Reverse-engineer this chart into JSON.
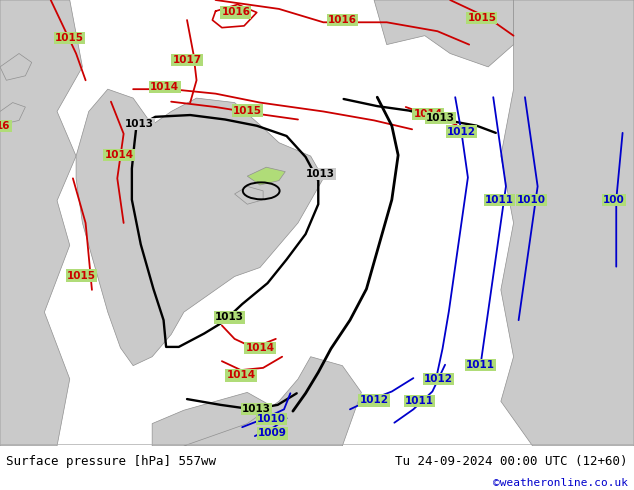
{
  "title_left": "Surface pressure [hPa] 557ww",
  "title_right": "Tu 24-09-2024 00:00 UTC (12+60)",
  "copyright": "©weatheronline.co.uk",
  "bg_color": "#b0dc78",
  "land_color": "#cacaca",
  "land_edge": "#909090",
  "footer_bg": "#ffffff",
  "footer_text_color": "#000000",
  "copyright_color": "#0000cc",
  "black_color": "#000000",
  "red_color": "#cc0000",
  "blue_color": "#0000cc",
  "figsize": [
    6.34,
    4.9
  ],
  "dpi": 100
}
